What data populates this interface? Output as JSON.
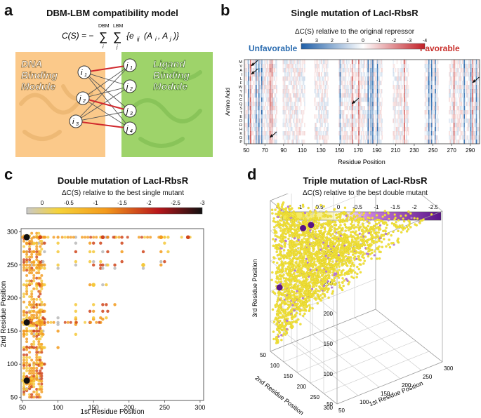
{
  "panel_labels": {
    "a": "a",
    "b": "b",
    "c": "c",
    "d": "d"
  },
  "panel_a": {
    "title": "DBM-LBM compatibility model",
    "equation_lhs": "C(S) = −",
    "sum_i_top": "DBM",
    "sum_j_top": "LBM",
    "sum_i_bottom": "i",
    "sum_j_bottom": "j",
    "equation_term": "{e",
    "equation_sub": "ij",
    "equation_args": "(A",
    "arg_i": "i",
    "arg_j": "j",
    "module_left": [
      "DNA",
      "Binding",
      "Module"
    ],
    "module_right": [
      "Ligand",
      "Binding",
      "Module"
    ],
    "nodes_left": [
      "i1",
      "j2",
      "i3"
    ],
    "nodes_left_base": [
      "i",
      "j",
      "i"
    ],
    "nodes_left_sub": [
      "1",
      "2",
      "3"
    ],
    "nodes_right_base": [
      "j",
      "j",
      "j",
      "j"
    ],
    "nodes_right_sub": [
      "1",
      "2",
      "3",
      "4"
    ],
    "colors": {
      "dbm": "#fbc98a",
      "lbm": "#9ed36a",
      "strong_edge": "#d0282d",
      "weak_edge": "#555555"
    }
  },
  "panel_b": {
    "title": "Single mutation of LacI-RbsR",
    "delta_label": "ΔC(S) relative to the original repressor",
    "unfavorable": "Unfavorable",
    "favorable": "Favorable",
    "colorbar_ticks": [
      "4",
      "3",
      "2",
      "1",
      "0",
      "-1",
      "-2",
      "-3",
      "-4"
    ],
    "y_axis_label": "Amino Acid",
    "x_axis_label": "Residue Position",
    "colors": {
      "unfavorable": "#2b6cb0",
      "favorable": "#c9302c"
    }
  },
  "panel_c": {
    "title": "Double mutation of LacI-RbsR",
    "delta_label": "ΔC(S) relative to the best single mutant",
    "colorbar_ticks": [
      "0",
      "-0.5",
      "-1",
      "-1.5",
      "-2",
      "-2.5",
      "-3"
    ]
  },
  "panel_d": {
    "title": "Triple mutation of LacI-RbsR",
    "delta_label": "ΔC(S) relative to the best double mutant",
    "colorbar_ticks": [
      "1",
      "0.5",
      "0",
      "-0.5",
      "-1",
      "-1.5",
      "-2",
      "-2.5"
    ],
    "z_axis_label": "3rd Residue Position",
    "y_axis_label": "2nd Residue Position",
    "x_axis_label": "1st Residue Position",
    "z_ticks": [
      "50",
      "100",
      "150",
      "200",
      "250",
      "300"
    ],
    "y_ticks": [
      "300",
      "250",
      "200",
      "150",
      "100",
      "50"
    ],
    "x_ticks": [
      "50",
      "100",
      "150",
      "200",
      "250",
      "300"
    ]
  },
  "chart_data": [
    {
      "type": "heatmap",
      "title": "Single mutation of LacI-RbsR",
      "xlabel": "Residue Position",
      "ylabel": "Amino Acid",
      "x_ticks": [
        50,
        70,
        90,
        110,
        130,
        150,
        170,
        190,
        210,
        230,
        250,
        270,
        290
      ],
      "y_categories": [
        "M",
        "V",
        "A",
        "I",
        "L",
        "F",
        "W",
        "Y",
        "N",
        "C",
        "Q",
        "S",
        "T",
        "E",
        "D",
        "R",
        "H",
        "K",
        "G",
        "P"
      ],
      "xlim": [
        48,
        300
      ],
      "colorbar_range": [
        4,
        -4
      ],
      "strong_unfavorable_columns": [
        52,
        60,
        63,
        66,
        150,
        180,
        183,
        185,
        190,
        245,
        248,
        252,
        283,
        290,
        296
      ],
      "strong_favorable_columns": [
        54,
        75,
        77,
        163,
        170,
        219,
        272,
        292
      ],
      "blank_columns": [
        [
          83,
          88
        ],
        [
          113,
          122
        ],
        [
          138,
          148
        ],
        [
          196,
          206
        ],
        [
          224,
          240
        ],
        [
          256,
          266
        ]
      ],
      "highlights": [
        {
          "position": 55,
          "amino_acid": "V"
        },
        {
          "position": 55,
          "amino_acid": "I"
        },
        {
          "position": 75,
          "amino_acid": "G"
        },
        {
          "position": 163,
          "amino_acid": "Q"
        },
        {
          "position": 292,
          "amino_acid": "F"
        }
      ]
    },
    {
      "type": "scatter",
      "title": "Double mutation of LacI-RbsR",
      "xlabel": "1st Residue Position",
      "ylabel": "2nd Residue Position",
      "xlim": [
        48,
        305
      ],
      "ylim": [
        45,
        305
      ],
      "x_ticks": [
        50,
        100,
        150,
        200,
        250,
        300
      ],
      "y_ticks": [
        50,
        100,
        150,
        200,
        250,
        300
      ],
      "colorbar_range": [
        0,
        -3
      ],
      "residue_positions": [
        52,
        56,
        60,
        63,
        66,
        70,
        73,
        75,
        77,
        79,
        81,
        100,
        125,
        145,
        150,
        160,
        163,
        168,
        170,
        180,
        190,
        220,
        245,
        250,
        255,
        270,
        283,
        292
      ],
      "points": [
        {
          "x": 56,
          "y": 292,
          "value": -3.0
        },
        {
          "x": 56,
          "y": 163,
          "value": -3.0
        },
        {
          "x": 56,
          "y": 75,
          "value": -3.0
        },
        {
          "x": 163,
          "y": 292,
          "value": -1.5
        },
        {
          "x": 75,
          "y": 292,
          "value": -1.5
        },
        {
          "x": 75,
          "y": 163,
          "value": -1.2
        },
        {
          "x": 150,
          "y": 220,
          "value": -0.5
        },
        {
          "x": 220,
          "y": 250,
          "value": -0.3
        },
        {
          "x": 245,
          "y": 292,
          "value": -1.4
        },
        {
          "x": 283,
          "y": 292,
          "value": -1.8
        }
      ]
    },
    {
      "type": "scatter",
      "title": "Triple mutation of LacI-RbsR",
      "xlabel": "1st Residue Position",
      "ylabel": "2nd Residue Position",
      "zlabel": "3rd Residue Position",
      "xlim": [
        50,
        300
      ],
      "ylim": [
        50,
        300
      ],
      "zlim": [
        50,
        300
      ],
      "colorbar_range": [
        1,
        -2.5
      ],
      "points": [
        {
          "x": 56,
          "y": 163,
          "z": 292,
          "value": -2.5
        },
        {
          "x": 75,
          "y": 163,
          "z": 292,
          "value": -2.3
        },
        {
          "x": 56,
          "y": 75,
          "z": 163,
          "value": -2.4
        }
      ]
    }
  ]
}
